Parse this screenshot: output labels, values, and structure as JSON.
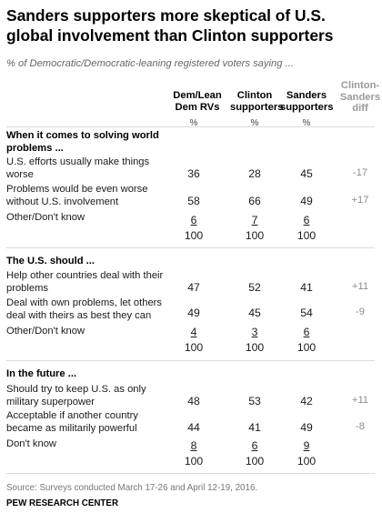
{
  "title": "Sanders supporters more skeptical of U.S. global involvement than Clinton supporters",
  "subtitle": "% of Democratic/Democratic-leaning registered voters saying ...",
  "columns": {
    "c1": "Dem/Lean Dem RVs",
    "c2": "Clinton supporters",
    "c3": "Sanders supporters",
    "diff": "Clinton-Sanders diff",
    "pct": "%"
  },
  "sections": [
    {
      "heading": "When it comes to solving world problems ...",
      "rows": [
        {
          "label": "U.S. efforts usually make things worse",
          "c1": "36",
          "c2": "28",
          "c3": "45",
          "diff": "-17"
        },
        {
          "label": "Problems would be even worse without U.S. involvement",
          "c1": "58",
          "c2": "66",
          "c3": "49",
          "diff": "+17"
        },
        {
          "label": "Other/Don't know",
          "c1": "6",
          "c2": "7",
          "c3": "6",
          "diff": ""
        }
      ],
      "totals": {
        "c1": "100",
        "c2": "100",
        "c3": "100"
      }
    },
    {
      "heading": "The U.S. should ...",
      "rows": [
        {
          "label": "Help other countries deal with their problems",
          "c1": "47",
          "c2": "52",
          "c3": "41",
          "diff": "+11"
        },
        {
          "label": "Deal with own problems, let others deal with theirs as best they can",
          "c1": "49",
          "c2": "45",
          "c3": "54",
          "diff": "-9"
        },
        {
          "label": "Other/Don't know",
          "c1": "4",
          "c2": "3",
          "c3": "6",
          "diff": ""
        }
      ],
      "totals": {
        "c1": "100",
        "c2": "100",
        "c3": "100"
      }
    },
    {
      "heading": "In the future ...",
      "rows": [
        {
          "label": "Should try to keep U.S. as only military superpower",
          "c1": "48",
          "c2": "53",
          "c3": "42",
          "diff": "+11"
        },
        {
          "label": "Acceptable if another country became as militarily powerful",
          "c1": "44",
          "c2": "41",
          "c3": "49",
          "diff": "-8"
        },
        {
          "label": "Don't know",
          "c1": "8",
          "c2": "6",
          "c3": "9",
          "diff": ""
        }
      ],
      "totals": {
        "c1": "100",
        "c2": "100",
        "c3": "100"
      }
    }
  ],
  "source": "Source: Surveys conducted March 17-26 and April 12-19, 2016.",
  "organization": "PEW RESEARCH CENTER"
}
